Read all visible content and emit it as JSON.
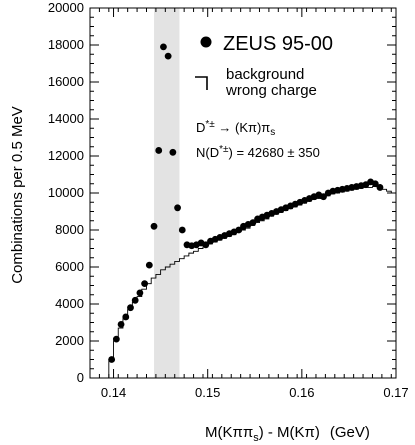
{
  "chart_data": {
    "type": "scatter",
    "xlabel_parts": [
      "M(Kππ",
      "s",
      ") - M(Kπ)",
      "(GeV)"
    ],
    "ylabel": "Combinations per 0.5 MeV",
    "xlim": [
      0.1375,
      0.17
    ],
    "ylim": [
      0,
      20000
    ],
    "x_ticks": [
      0.14,
      0.15,
      0.16,
      0.17
    ],
    "x_tick_labels": [
      "0.14",
      "0.15",
      "0.16",
      "0.17"
    ],
    "y_ticks": [
      0,
      2000,
      4000,
      6000,
      8000,
      10000,
      12000,
      14000,
      16000,
      18000,
      20000
    ],
    "y_tick_labels": [
      "0",
      "2000",
      "4000",
      "6000",
      "8000",
      "10000",
      "12000",
      "14000",
      "16000",
      "18000",
      "20000"
    ],
    "signal_band": [
      0.1443,
      0.147
    ],
    "legend": {
      "data_label": "ZEUS 95-00",
      "background_label_line1": "background",
      "background_label_line2": "wrong charge"
    },
    "annotations": {
      "decay_parts": [
        "D",
        "*±",
        " → (Kπ)π",
        "s"
      ],
      "count_parts": [
        "N(D",
        "*±",
        ") = 42680 ± 350"
      ]
    },
    "series": [
      {
        "name": "ZEUS 95-00",
        "kind": "points",
        "x": [
          0.1398,
          0.1403,
          0.1408,
          0.1413,
          0.1418,
          0.1423,
          0.1428,
          0.1433,
          0.1438,
          0.1443,
          0.1448,
          0.1453,
          0.1458,
          0.1463,
          0.1468,
          0.1473,
          0.1478,
          0.1483,
          0.1488,
          0.1493,
          0.1498,
          0.1503,
          0.1508,
          0.1513,
          0.1518,
          0.1523,
          0.1528,
          0.1533,
          0.1538,
          0.1543,
          0.1548,
          0.1553,
          0.1558,
          0.1563,
          0.1568,
          0.1573,
          0.1578,
          0.1583,
          0.1588,
          0.1593,
          0.1598,
          0.1603,
          0.1608,
          0.1613,
          0.1618,
          0.1623,
          0.1628,
          0.1633,
          0.1638,
          0.1643,
          0.1648,
          0.1653,
          0.1658,
          0.1663,
          0.1668,
          0.1673,
          0.1678,
          0.1683
        ],
        "y": [
          1000,
          2100,
          2900,
          3300,
          3800,
          4200,
          4600,
          5100,
          6100,
          8200,
          12300,
          17900,
          17400,
          12200,
          9200,
          8000,
          7200,
          7150,
          7200,
          7300,
          7200,
          7400,
          7500,
          7600,
          7700,
          7800,
          7900,
          8000,
          8200,
          8300,
          8400,
          8600,
          8700,
          8800,
          8900,
          9000,
          9100,
          9200,
          9300,
          9400,
          9500,
          9600,
          9700,
          9800,
          9900,
          9800,
          10000,
          10100,
          10150,
          10200,
          10250,
          10300,
          10350,
          10400,
          10450,
          10600,
          10500,
          10300
        ]
      },
      {
        "name": "background wrong charge",
        "kind": "step",
        "bin_width": 0.0005,
        "x": [
          0.1395,
          0.14,
          0.1405,
          0.141,
          0.1415,
          0.142,
          0.1425,
          0.143,
          0.1435,
          0.144,
          0.1445,
          0.145,
          0.1455,
          0.146,
          0.1465,
          0.147,
          0.1475,
          0.148,
          0.1485,
          0.149,
          0.1495,
          0.15,
          0.1505,
          0.151,
          0.1515,
          0.152,
          0.1525,
          0.153,
          0.1535,
          0.154,
          0.1545,
          0.155,
          0.1555,
          0.156,
          0.1565,
          0.157,
          0.1575,
          0.158,
          0.1585,
          0.159,
          0.1595,
          0.16,
          0.1605,
          0.161,
          0.1615,
          0.162,
          0.1625,
          0.163,
          0.1635,
          0.164,
          0.1645,
          0.165,
          0.1655,
          0.166,
          0.1665,
          0.167,
          0.1675,
          0.168,
          0.1685,
          0.169,
          0.1695
        ],
        "y": [
          1000,
          2000,
          2700,
          3200,
          3700,
          4100,
          4400,
          4800,
          5100,
          5400,
          5600,
          5850,
          6000,
          6150,
          6300,
          6450,
          6600,
          6750,
          6850,
          7000,
          7100,
          7250,
          7350,
          7450,
          7550,
          7650,
          7750,
          7900,
          8000,
          8100,
          8250,
          8400,
          8500,
          8600,
          8750,
          8850,
          8950,
          9050,
          9150,
          9250,
          9350,
          9450,
          9550,
          9650,
          9700,
          9800,
          9850,
          9950,
          10000,
          10050,
          10100,
          10150,
          10200,
          10250,
          10300,
          10300,
          10350,
          10300,
          10200,
          10100,
          10000
        ]
      }
    ]
  }
}
